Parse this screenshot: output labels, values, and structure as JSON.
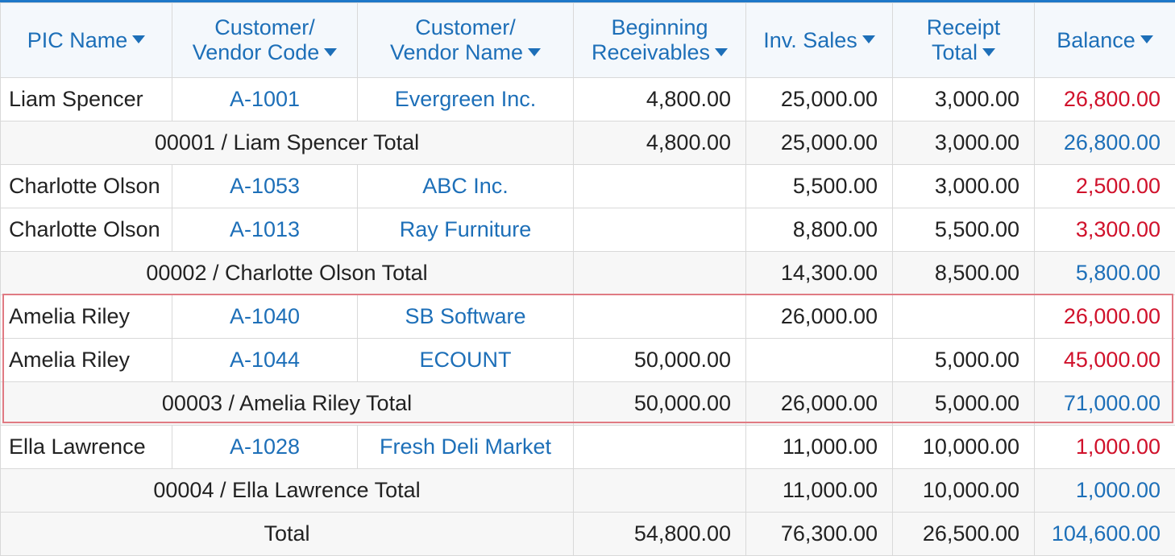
{
  "columns": {
    "pic_name": "PIC Name",
    "cv_code_l1": "Customer/",
    "cv_code_l2": "Vendor Code",
    "cv_name_l1": "Customer/",
    "cv_name_l2": "Vendor Name",
    "beg_l1": "Beginning",
    "beg_l2": "Receivables",
    "inv_sales": "Inv. Sales",
    "receipt_l1": "Receipt",
    "receipt_l2": "Total",
    "balance": "Balance"
  },
  "rows": [
    {
      "pic": "Liam Spencer",
      "code": "A-1001",
      "name": "Evergreen Inc.",
      "beg": "4,800.00",
      "sales": "25,000.00",
      "receipt": "3,000.00",
      "balance": "26,800.00"
    },
    {
      "total_label": "00001 / Liam Spencer Total",
      "beg": "4,800.00",
      "sales": "25,000.00",
      "receipt": "3,000.00",
      "balance": "26,800.00"
    },
    {
      "pic": "Charlotte Olson",
      "code": "A-1053",
      "name": "ABC Inc.",
      "beg": "",
      "sales": "5,500.00",
      "receipt": "3,000.00",
      "balance": "2,500.00"
    },
    {
      "pic": "Charlotte Olson",
      "code": "A-1013",
      "name": "Ray Furniture",
      "beg": "",
      "sales": "8,800.00",
      "receipt": "5,500.00",
      "balance": "3,300.00"
    },
    {
      "total_label": "00002 / Charlotte Olson Total",
      "beg": "",
      "sales": "14,300.00",
      "receipt": "8,500.00",
      "balance": "5,800.00"
    },
    {
      "pic": "Amelia Riley",
      "code": "A-1040",
      "name": "SB Software",
      "beg": "",
      "sales": "26,000.00",
      "receipt": "",
      "balance": "26,000.00"
    },
    {
      "pic": "Amelia Riley",
      "code": "A-1044",
      "name": "ECOUNT",
      "beg": "50,000.00",
      "sales": "",
      "receipt": "5,000.00",
      "balance": "45,000.00"
    },
    {
      "total_label": "00003 / Amelia Riley Total",
      "beg": "50,000.00",
      "sales": "26,000.00",
      "receipt": "5,000.00",
      "balance": "71,000.00"
    },
    {
      "pic": "Ella Lawrence",
      "code": "A-1028",
      "name": "Fresh Deli Market",
      "beg": "",
      "sales": "11,000.00",
      "receipt": "10,000.00",
      "balance": "1,000.00"
    },
    {
      "total_label": "00004 / Ella Lawrence Total",
      "beg": "",
      "sales": "11,000.00",
      "receipt": "10,000.00",
      "balance": "1,000.00"
    },
    {
      "total_label": "Total",
      "beg": "54,800.00",
      "sales": "76,300.00",
      "receipt": "26,500.00",
      "balance": "104,600.00"
    }
  ],
  "colors": {
    "header_text": "#1d6fb8",
    "link": "#1d6fb8",
    "negative_balance": "#d0112b",
    "total_balance": "#1d6fb8",
    "highlight_border": "#e07a83",
    "top_border": "#1e78c8"
  }
}
